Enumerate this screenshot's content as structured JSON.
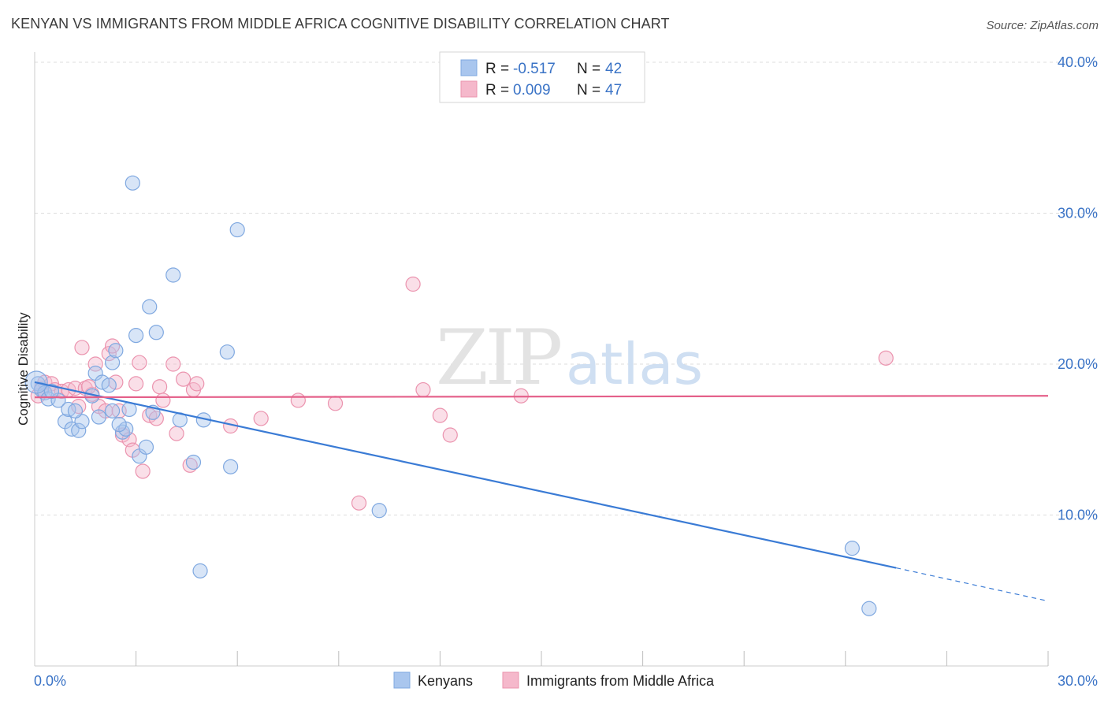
{
  "title": "KENYAN VS IMMIGRANTS FROM MIDDLE AFRICA COGNITIVE DISABILITY CORRELATION CHART",
  "source": "Source: ZipAtlas.com",
  "watermark": {
    "zip": "ZIP",
    "atlas": "atlas"
  },
  "colors": {
    "blue": "#3a7bd5",
    "blue_fill": "#a9c6ee",
    "pink": "#e4608a",
    "pink_fill": "#f5b8cb",
    "axis_label": "#3a73c6"
  },
  "legend": {
    "rows": [
      {
        "r_label": "R = ",
        "r_value": "-0.517",
        "n_label": "N = ",
        "n_value": "42"
      },
      {
        "r_label": "R = ",
        "r_value": "0.009",
        "n_label": "N = ",
        "n_value": "47"
      }
    ]
  },
  "bottom_legend": {
    "series1": "Kenyans",
    "series2": "Immigrants from Middle Africa"
  },
  "chart_data": {
    "type": "scatter",
    "title": "KENYAN VS IMMIGRANTS FROM MIDDLE AFRICA COGNITIVE DISABILITY CORRELATION CHART",
    "ylabel": "Cognitive Disability",
    "xlabel": "",
    "xlim": [
      0,
      30
    ],
    "ylim": [
      0,
      40
    ],
    "x_tick_labels": [
      "0.0%",
      "30.0%"
    ],
    "y_ticks": [
      10,
      20,
      30,
      40
    ],
    "y_tick_labels": [
      "10.0%",
      "20.0%",
      "30.0%",
      "40.0%"
    ],
    "series": [
      {
        "name": "Kenyans",
        "r": -0.517,
        "n": 42,
        "trend": {
          "x0": 0,
          "y0": 18.8,
          "x1": 25.5,
          "y1": 6.5,
          "dash_to_x": 30,
          "dash_to_y": 4.3
        },
        "points": [
          [
            0.1,
            18.7
          ],
          [
            0.2,
            18.3
          ],
          [
            0.3,
            18.1
          ],
          [
            0.4,
            17.7
          ],
          [
            0.7,
            17.6
          ],
          [
            0.9,
            16.2
          ],
          [
            1.0,
            17.0
          ],
          [
            1.1,
            15.7
          ],
          [
            1.3,
            15.6
          ],
          [
            1.4,
            16.2
          ],
          [
            1.7,
            17.9
          ],
          [
            1.8,
            19.4
          ],
          [
            1.9,
            16.5
          ],
          [
            2.0,
            18.8
          ],
          [
            2.2,
            18.6
          ],
          [
            2.3,
            16.9
          ],
          [
            2.3,
            20.1
          ],
          [
            2.4,
            20.9
          ],
          [
            2.6,
            15.5
          ],
          [
            2.7,
            15.7
          ],
          [
            2.8,
            17.0
          ],
          [
            2.9,
            32.0
          ],
          [
            3.0,
            21.9
          ],
          [
            3.1,
            13.9
          ],
          [
            3.3,
            14.5
          ],
          [
            3.4,
            23.8
          ],
          [
            3.6,
            22.1
          ],
          [
            3.5,
            16.8
          ],
          [
            4.1,
            25.9
          ],
          [
            4.3,
            16.3
          ],
          [
            4.7,
            13.5
          ],
          [
            4.9,
            6.3
          ],
          [
            5.0,
            16.3
          ],
          [
            5.7,
            20.8
          ],
          [
            5.8,
            13.2
          ],
          [
            6.0,
            28.9
          ],
          [
            10.2,
            10.3
          ],
          [
            24.2,
            7.8
          ],
          [
            24.7,
            3.8
          ],
          [
            1.2,
            16.9
          ],
          [
            0.5,
            18.2
          ],
          [
            2.5,
            16.0
          ]
        ]
      },
      {
        "name": "Immigrants from Middle Africa",
        "r": 0.009,
        "n": 47,
        "trend": {
          "x0": 0,
          "y0": 17.8,
          "x1": 30,
          "y1": 17.9
        },
        "points": [
          [
            0.1,
            17.9
          ],
          [
            0.2,
            18.4
          ],
          [
            0.3,
            18.8
          ],
          [
            0.5,
            18.7
          ],
          [
            0.6,
            18.3
          ],
          [
            0.8,
            18.2
          ],
          [
            1.0,
            18.3
          ],
          [
            1.2,
            18.4
          ],
          [
            1.3,
            17.2
          ],
          [
            1.4,
            21.1
          ],
          [
            1.5,
            18.4
          ],
          [
            1.7,
            18.0
          ],
          [
            1.8,
            20.0
          ],
          [
            1.9,
            17.2
          ],
          [
            2.1,
            16.9
          ],
          [
            2.2,
            20.7
          ],
          [
            2.3,
            21.2
          ],
          [
            2.4,
            18.8
          ],
          [
            2.5,
            16.9
          ],
          [
            2.6,
            15.3
          ],
          [
            2.8,
            15.0
          ],
          [
            2.9,
            14.3
          ],
          [
            3.0,
            18.7
          ],
          [
            3.1,
            20.1
          ],
          [
            3.2,
            12.9
          ],
          [
            3.4,
            16.6
          ],
          [
            3.6,
            16.4
          ],
          [
            3.7,
            18.5
          ],
          [
            3.8,
            17.6
          ],
          [
            4.1,
            20.0
          ],
          [
            4.2,
            15.4
          ],
          [
            4.4,
            19.0
          ],
          [
            4.6,
            13.3
          ],
          [
            4.7,
            18.3
          ],
          [
            4.8,
            18.7
          ],
          [
            5.8,
            15.9
          ],
          [
            6.7,
            16.4
          ],
          [
            7.8,
            17.6
          ],
          [
            8.9,
            17.4
          ],
          [
            9.6,
            10.8
          ],
          [
            11.2,
            25.3
          ],
          [
            11.5,
            18.3
          ],
          [
            12.0,
            16.6
          ],
          [
            12.3,
            15.3
          ],
          [
            14.4,
            17.9
          ],
          [
            25.2,
            20.4
          ],
          [
            1.6,
            18.5
          ]
        ]
      }
    ]
  }
}
